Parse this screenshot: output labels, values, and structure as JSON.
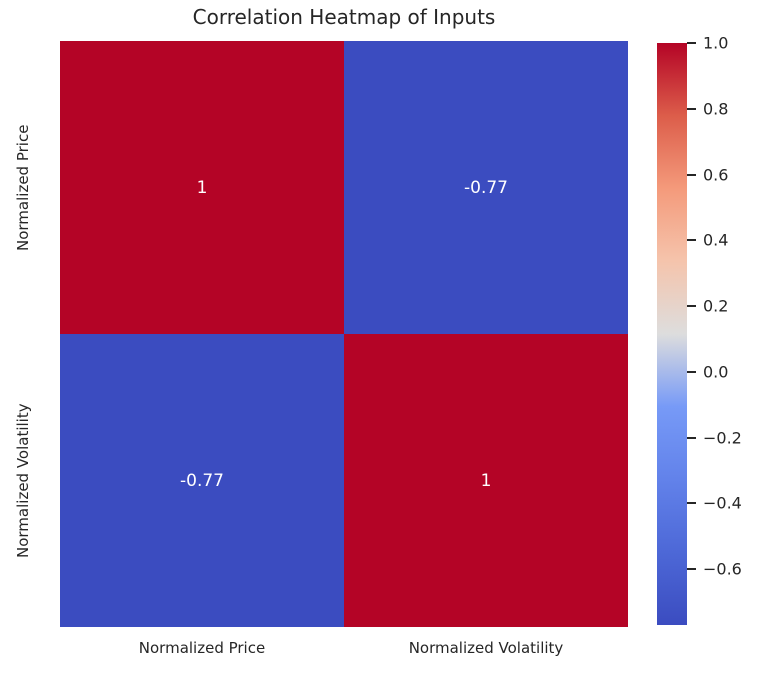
{
  "title": "Correlation Heatmap of Inputs",
  "colors": {
    "background": "#ffffff",
    "text": "#262626",
    "annotation_text": "#ffffff",
    "cell_positive": "#B40426",
    "cell_negative": "#3B4CC0"
  },
  "chart_data": {
    "type": "heatmap",
    "title": "Correlation Heatmap of Inputs",
    "x_categories": [
      "Normalized Price",
      "Normalized Volatility"
    ],
    "y_categories": [
      "Normalized Price",
      "Normalized Volatility"
    ],
    "matrix": [
      [
        1,
        -0.77
      ],
      [
        -0.77,
        1
      ]
    ],
    "cell_labels": [
      [
        "1",
        "-0.77"
      ],
      [
        "-0.77",
        "1"
      ]
    ],
    "cell_colors": [
      [
        "#B40426",
        "#3B4CC0"
      ],
      [
        "#3B4CC0",
        "#B40426"
      ]
    ],
    "colormap": "coolwarm",
    "vmin": -0.77,
    "vmax": 1.0,
    "grid": false,
    "colorbar": {
      "position": "right",
      "ticks": [
        1.0,
        0.8,
        0.6,
        0.4,
        0.2,
        0.0,
        -0.2,
        -0.4,
        -0.6
      ],
      "tick_labels": [
        "1.0",
        "0.8",
        "0.6",
        "0.4",
        "0.2",
        "0.0",
        "−0.2",
        "−0.4",
        "−0.6"
      ],
      "gradient_stops": [
        {
          "pos": 0,
          "color": "#B40426"
        },
        {
          "pos": 12.5,
          "color": "#DC5D4A"
        },
        {
          "pos": 25,
          "color": "#F49A7B"
        },
        {
          "pos": 37.5,
          "color": "#F5C4AC"
        },
        {
          "pos": 50,
          "color": "#DDDDDD"
        },
        {
          "pos": 62.5,
          "color": "#779AF7"
        },
        {
          "pos": 75,
          "color": "#6282EA"
        },
        {
          "pos": 87.5,
          "color": "#4D68D7"
        },
        {
          "pos": 100,
          "color": "#3B4CC0"
        }
      ]
    }
  }
}
